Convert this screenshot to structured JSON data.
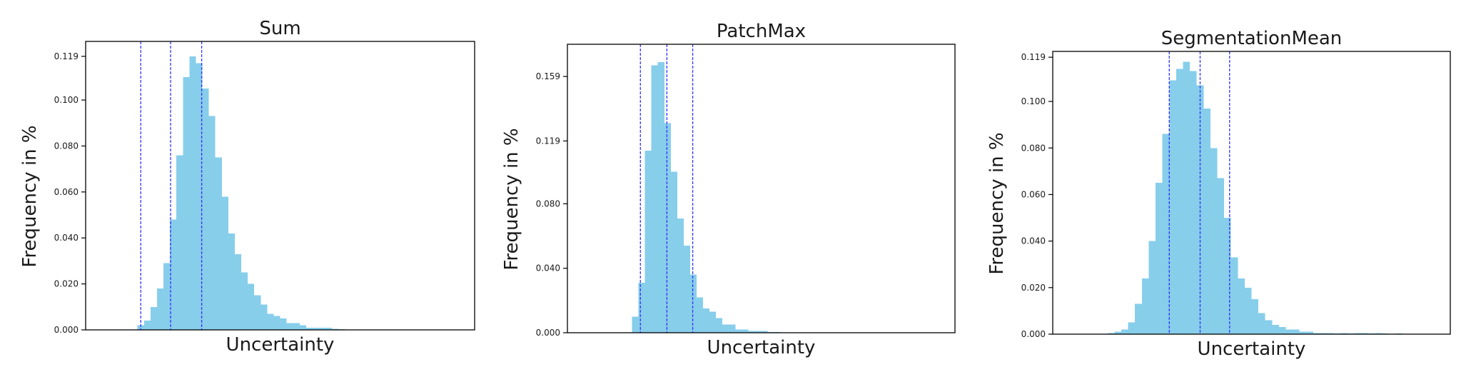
{
  "chart_data": [
    {
      "type": "bar",
      "title": "Sum",
      "xlabel": "Uncertainty",
      "ylabel": "Frequency in %",
      "yticks": [
        "0.000",
        "0.020",
        "0.040",
        "0.060",
        "0.080",
        "0.100",
        "0.119"
      ],
      "ylim": [
        0,
        0.1255
      ],
      "xlim": [
        0,
        60
      ],
      "bin_width": 1,
      "values": [
        0,
        0,
        0,
        0,
        0,
        0,
        0,
        0,
        0.002,
        0.004,
        0.01,
        0.018,
        0.029,
        0.048,
        0.076,
        0.11,
        0.119,
        0.116,
        0.105,
        0.093,
        0.075,
        0.058,
        0.042,
        0.033,
        0.025,
        0.02,
        0.015,
        0.011,
        0.007,
        0.006,
        0.005,
        0.003,
        0.003,
        0.002,
        0.001,
        0.001,
        0.001,
        0.001,
        0.0005,
        0.0003,
        0.0002,
        0.0002,
        0.0001,
        0,
        0,
        0,
        0,
        0,
        0,
        0,
        0,
        0,
        0,
        0,
        0,
        0,
        0,
        0,
        0,
        0
      ],
      "vlines": [
        8.5,
        13.1,
        17.9
      ],
      "bar_color": "#87ceeb",
      "line_color": "#3333ff"
    },
    {
      "type": "bar",
      "title": "PatchMax",
      "xlabel": "Uncertainty",
      "ylabel": "Frequency in %",
      "yticks": [
        "0.000",
        "0.040",
        "0.080",
        "0.119",
        "0.159"
      ],
      "ylim": [
        0,
        0.179
      ],
      "xlim": [
        0,
        60
      ],
      "bin_width": 1,
      "values": [
        0,
        0,
        0,
        0,
        0,
        0,
        0,
        0,
        0,
        0,
        0.01,
        0.031,
        0.113,
        0.166,
        0.168,
        0.13,
        0.1,
        0.071,
        0.054,
        0.036,
        0.022,
        0.015,
        0.013,
        0.009,
        0.005,
        0.005,
        0.002,
        0.002,
        0.001,
        0.001,
        0.001,
        0.0005,
        0.0005,
        0.0003,
        0.0003,
        0.0002,
        0.0002,
        0.0001,
        0.0001,
        0.0001,
        0.0001,
        0.0001,
        0,
        0,
        0,
        0,
        0,
        0,
        0,
        0,
        0,
        0,
        0,
        0,
        0,
        0,
        0,
        0,
        0,
        0
      ],
      "vlines": [
        11.3,
        15.4,
        19.4
      ],
      "bar_color": "#87ceeb",
      "line_color": "#3333ff"
    },
    {
      "type": "bar",
      "title": "SegmentationMean",
      "xlabel": "Uncertainty",
      "ylabel": "Frequency in %",
      "yticks": [
        "0.000",
        "0.020",
        "0.040",
        "0.060",
        "0.080",
        "0.100",
        "0.119"
      ],
      "ylim": [
        0,
        0.1215
      ],
      "xlim": [
        0,
        58
      ],
      "bin_width": 1,
      "values": [
        0,
        0,
        0,
        0,
        0,
        0,
        0,
        0,
        0.0005,
        0.001,
        0.002,
        0.005,
        0.013,
        0.024,
        0.04,
        0.065,
        0.086,
        0.109,
        0.114,
        0.117,
        0.113,
        0.107,
        0.097,
        0.08,
        0.067,
        0.05,
        0.033,
        0.024,
        0.02,
        0.015,
        0.009,
        0.006,
        0.004,
        0.003,
        0.002,
        0.002,
        0.001,
        0.001,
        0.0005,
        0.0005,
        0.0005,
        0.0003,
        0.0005,
        0.0003,
        0.0005,
        0.0005,
        0.0003,
        0.0005,
        0.0003,
        0.0002,
        0.0003,
        0.0002,
        0,
        0,
        0,
        0,
        0,
        0
      ],
      "vlines": [
        17.0,
        21.5,
        25.8
      ],
      "bar_color": "#87ceeb",
      "line_color": "#3333ff"
    }
  ]
}
